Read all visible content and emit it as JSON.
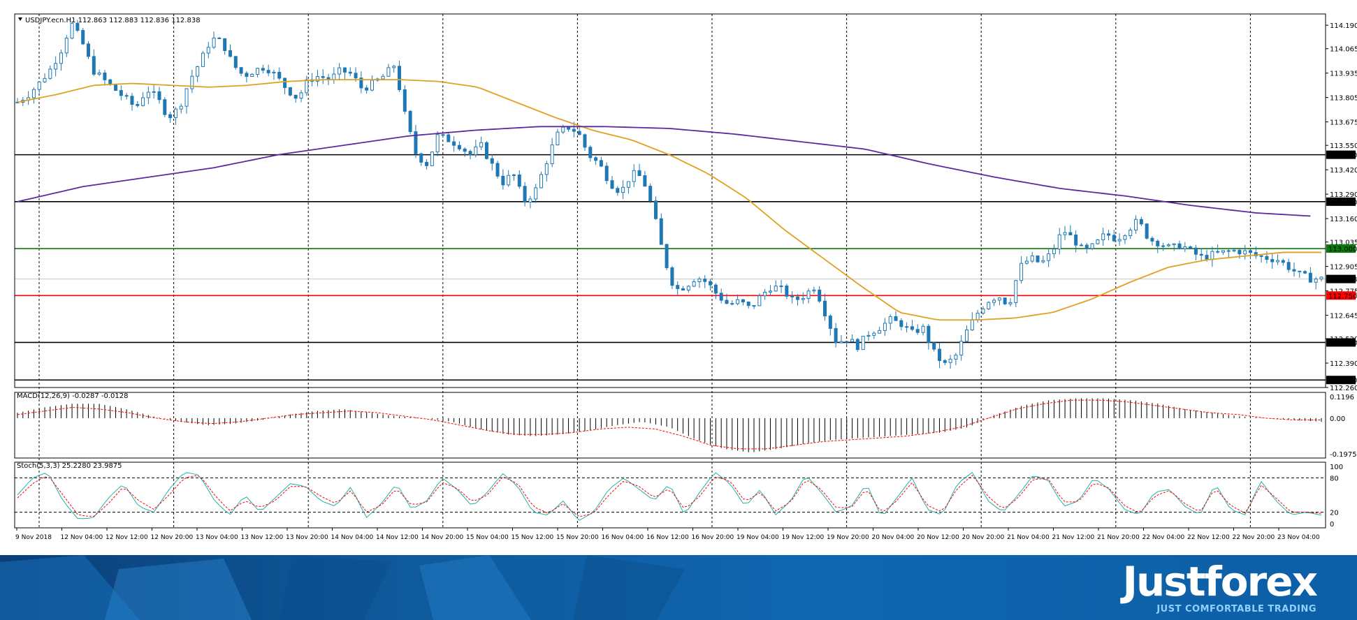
{
  "header": {
    "symbol_info": "USDJPY.ecn.H1  112.863 112.883 112.836 112.838"
  },
  "macd": {
    "label": "MACD(12,26,9) -0.0287 -0.0128",
    "ticks": [
      "0.1196",
      "0.00",
      "-0.1975"
    ]
  },
  "stoch": {
    "label": "Stoch(5,3,3) 25.2280 23.9875",
    "ticks": [
      "100",
      "80",
      "20",
      "0"
    ]
  },
  "brand": {
    "name": "Justforex",
    "tagline": "JUST COMFORTABLE TRADING"
  },
  "colors": {
    "candle": "#1f78b4",
    "ma_fast": "#e0a020",
    "ma_slow": "#5b2a9e",
    "level_black": "#000000",
    "level_green": "#0a7a0a",
    "level_red": "#ff0000",
    "macd_signal": "#ff0000",
    "stoch_main": "#20b2aa",
    "stoch_signal": "#ff0000"
  },
  "chart_data": [
    {
      "type": "candlestick",
      "title": "USDJPY.ecn.H1",
      "ylim": [
        112.26,
        114.25
      ],
      "y_ticks": [
        "114.190",
        "114.065",
        "113.935",
        "113.805",
        "113.675",
        "113.550",
        "113.420",
        "113.290",
        "113.160",
        "113.035",
        "112.905",
        "112.775",
        "112.645",
        "112.520",
        "112.390",
        "112.260"
      ],
      "x_labels": [
        "9 Nov 2018",
        "12 Nov 04:00",
        "12 Nov 12:00",
        "12 Nov 20:00",
        "13 Nov 04:00",
        "13 Nov 12:00",
        "13 Nov 20:00",
        "14 Nov 04:00",
        "14 Nov 12:00",
        "14 Nov 20:00",
        "15 Nov 04:00",
        "15 Nov 12:00",
        "15 Nov 20:00",
        "16 Nov 04:00",
        "16 Nov 12:00",
        "16 Nov 20:00",
        "19 Nov 04:00",
        "19 Nov 12:00",
        "19 Nov 20:00",
        "20 Nov 04:00",
        "20 Nov 12:00",
        "20 Nov 20:00",
        "21 Nov 04:00",
        "21 Nov 12:00",
        "21 Nov 20:00",
        "22 Nov 04:00",
        "22 Nov 12:00",
        "22 Nov 20:00",
        "23 Nov 04:00"
      ],
      "close_path": [
        113.78,
        113.82,
        113.88,
        113.95,
        114.05,
        114.2,
        114.1,
        113.95,
        113.9,
        113.85,
        113.8,
        113.75,
        113.85,
        113.8,
        113.7,
        113.75,
        113.9,
        114.0,
        114.12,
        114.1,
        113.98,
        113.92,
        113.95,
        113.97,
        113.92,
        113.85,
        113.8,
        113.9,
        113.92,
        113.9,
        113.95,
        113.93,
        113.85,
        113.88,
        113.92,
        113.98,
        113.7,
        113.5,
        113.45,
        113.6,
        113.58,
        113.55,
        113.5,
        113.55,
        113.45,
        113.35,
        113.4,
        113.25,
        113.3,
        113.45,
        113.6,
        113.65,
        113.62,
        113.5,
        113.45,
        113.35,
        113.3,
        113.4,
        113.38,
        113.2,
        112.95,
        112.78,
        112.8,
        112.85,
        112.82,
        112.75,
        112.7,
        112.72,
        112.68,
        112.75,
        112.8,
        112.78,
        112.72,
        112.75,
        112.8,
        112.65,
        112.5,
        112.52,
        112.48,
        112.55,
        112.58,
        112.62,
        112.6,
        112.55,
        112.58,
        112.45,
        112.38,
        112.42,
        112.55,
        112.65,
        112.72,
        112.75,
        112.7,
        112.9,
        112.95,
        112.92,
        112.98,
        113.1,
        113.05,
        112.98,
        113.02,
        113.08,
        113.05,
        113.1,
        113.15,
        113.05,
        113.03,
        113.0,
        113.02,
        112.98,
        112.95,
        112.97,
        112.98,
        112.99,
        112.98,
        112.96,
        112.95,
        112.94,
        112.9,
        112.86,
        112.84,
        112.838
      ],
      "series": [
        {
          "name": "",
          "color": "#e0a020",
          "values": [
            113.78,
            113.82,
            113.87,
            113.88,
            113.87,
            113.86,
            113.87,
            113.89,
            113.9,
            113.9,
            113.9,
            113.89,
            113.86,
            113.78,
            113.7,
            113.63,
            113.58,
            113.5,
            113.4,
            113.27,
            113.1,
            112.95,
            112.8,
            112.66,
            112.62,
            112.62,
            112.63,
            112.66,
            112.73,
            112.82,
            112.9,
            112.94,
            112.96,
            112.98,
            112.98
          ]
        },
        {
          "name": "",
          "color": "#5b2a9e",
          "values": [
            113.25,
            113.33,
            113.38,
            113.43,
            113.5,
            113.55,
            113.6,
            113.63,
            113.65,
            113.65,
            113.64,
            113.61,
            113.57,
            113.53,
            113.45,
            113.38,
            113.32,
            113.28,
            113.23,
            113.19,
            113.17
          ]
        }
      ],
      "horizontal_levels": [
        {
          "value": 113.5,
          "label": "113.500",
          "color": "#000000"
        },
        {
          "value": 113.25,
          "label": "113.250",
          "color": "#000000"
        },
        {
          "value": 113.0,
          "label": "113.000",
          "color": "#0a7a0a"
        },
        {
          "value": 112.838,
          "label": "112.838",
          "color": "#000000"
        },
        {
          "value": 112.75,
          "label": "112.750",
          "color": "#ff0000"
        },
        {
          "value": 112.5,
          "label": "112.500",
          "color": "#000000"
        },
        {
          "value": 112.3,
          "label": "112.300",
          "color": "#000000"
        }
      ]
    },
    {
      "type": "bar",
      "title": "MACD(12,26,9) -0.0287 -0.0128",
      "ylim": [
        -0.1975,
        0.1196
      ],
      "histogram_path": [
        0.03,
        0.06,
        0.08,
        0.08,
        0.05,
        0.01,
        -0.02,
        -0.04,
        -0.03,
        -0.01,
        0.02,
        0.04,
        0.05,
        0.03,
        0.01,
        0.0,
        -0.02,
        -0.06,
        -0.09,
        -0.1,
        -0.09,
        -0.07,
        -0.04,
        -0.02,
        -0.05,
        -0.12,
        -0.17,
        -0.19,
        -0.17,
        -0.14,
        -0.12,
        -0.11,
        -0.1,
        -0.09,
        -0.08,
        -0.05,
        0.02,
        0.07,
        0.1,
        0.11,
        0.11,
        0.1,
        0.08,
        0.05,
        0.03,
        0.01,
        0.0,
        -0.01,
        -0.02
      ],
      "signal_path": [
        0.02,
        0.04,
        0.06,
        0.05,
        0.03,
        0.0,
        -0.02,
        -0.03,
        -0.02,
        0.0,
        0.02,
        0.03,
        0.04,
        0.03,
        0.01,
        -0.01,
        -0.04,
        -0.07,
        -0.09,
        -0.09,
        -0.08,
        -0.06,
        -0.05,
        -0.06,
        -0.1,
        -0.15,
        -0.17,
        -0.17,
        -0.15,
        -0.13,
        -0.12,
        -0.11,
        -0.1,
        -0.08,
        -0.05,
        0.0,
        0.05,
        0.08,
        0.1,
        0.1,
        0.09,
        0.07,
        0.05,
        0.03,
        0.02,
        0.0,
        -0.01,
        -0.01
      ]
    },
    {
      "type": "line",
      "title": "Stoch(5,3,3) 25.2280 23.9875",
      "ylim": [
        0,
        100
      ],
      "series": [
        {
          "name": "",
          "color": "#20b2aa",
          "values": [
            50,
            80,
            90,
            40,
            8,
            10,
            45,
            70,
            30,
            20,
            60,
            90,
            85,
            40,
            15,
            50,
            20,
            45,
            70,
            65,
            40,
            30,
            65,
            10,
            35,
            70,
            25,
            40,
            80,
            60,
            30,
            55,
            88,
            65,
            20,
            15,
            40,
            5,
            20,
            60,
            80,
            60,
            40,
            70,
            15,
            55,
            90,
            70,
            30,
            60,
            15,
            40,
            85,
            55,
            20,
            30,
            70,
            10,
            45,
            80,
            25,
            15,
            70,
            90,
            40,
            20,
            50,
            85,
            75,
            30,
            40,
            80,
            60,
            25,
            15,
            55,
            60,
            30,
            15,
            70,
            25,
            15,
            75,
            40,
            15,
            20,
            15
          ]
        },
        {
          "name": "",
          "color": "#ff0000",
          "values": [
            45,
            70,
            85,
            50,
            15,
            12,
            35,
            65,
            40,
            25,
            50,
            80,
            85,
            50,
            22,
            40,
            28,
            40,
            65,
            65,
            48,
            35,
            58,
            20,
            32,
            62,
            32,
            38,
            72,
            62,
            38,
            50,
            82,
            70,
            30,
            18,
            35,
            12,
            18,
            50,
            75,
            65,
            45,
            62,
            25,
            48,
            82,
            75,
            38,
            55,
            22,
            38,
            78,
            60,
            28,
            28,
            62,
            18,
            40,
            72,
            32,
            20,
            62,
            85,
            48,
            25,
            45,
            78,
            78,
            38,
            38,
            72,
            62,
            32,
            18,
            48,
            58,
            35,
            20,
            62,
            32,
            18,
            68,
            45,
            20,
            20,
            18
          ]
        }
      ]
    }
  ]
}
